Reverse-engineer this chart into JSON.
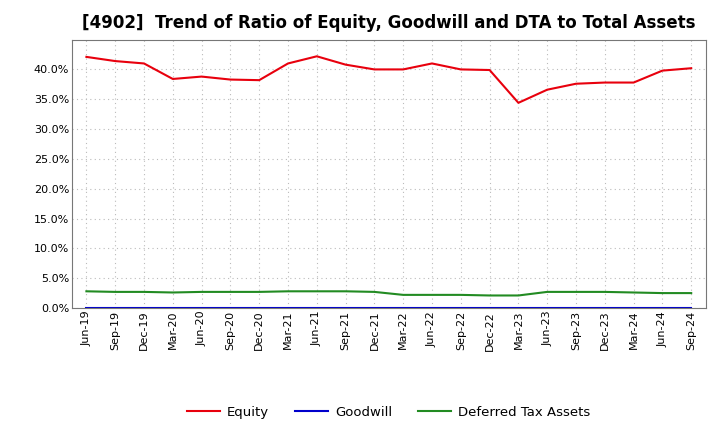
{
  "title": "[4902]  Trend of Ratio of Equity, Goodwill and DTA to Total Assets",
  "x_labels": [
    "Jun-19",
    "Sep-19",
    "Dec-19",
    "Mar-20",
    "Jun-20",
    "Sep-20",
    "Dec-20",
    "Mar-21",
    "Jun-21",
    "Sep-21",
    "Dec-21",
    "Mar-22",
    "Jun-22",
    "Sep-22",
    "Dec-22",
    "Mar-23",
    "Jun-23",
    "Sep-23",
    "Dec-23",
    "Mar-24",
    "Jun-24",
    "Sep-24"
  ],
  "equity": [
    0.421,
    0.414,
    0.41,
    0.384,
    0.388,
    0.383,
    0.382,
    0.41,
    0.422,
    0.408,
    0.4,
    0.4,
    0.41,
    0.4,
    0.399,
    0.344,
    0.366,
    0.376,
    0.378,
    0.378,
    0.398,
    0.402
  ],
  "goodwill": [
    0.0,
    0.0,
    0.0,
    0.0,
    0.0,
    0.0,
    0.0,
    0.0,
    0.0,
    0.0,
    0.0,
    0.0,
    0.0,
    0.0,
    0.0,
    0.0,
    0.0,
    0.0,
    0.0,
    0.0,
    0.0,
    0.0
  ],
  "dta": [
    0.028,
    0.027,
    0.027,
    0.026,
    0.027,
    0.027,
    0.027,
    0.028,
    0.028,
    0.028,
    0.027,
    0.022,
    0.022,
    0.022,
    0.021,
    0.021,
    0.027,
    0.027,
    0.027,
    0.026,
    0.025,
    0.025
  ],
  "equity_color": "#e8000d",
  "goodwill_color": "#0000cc",
  "dta_color": "#228B22",
  "background_color": "#ffffff",
  "plot_bg_color": "#ffffff",
  "grid_color": "#bbbbbb",
  "ylim": [
    0.0,
    0.45
  ],
  "yticks": [
    0.0,
    0.05,
    0.1,
    0.15,
    0.2,
    0.25,
    0.3,
    0.35,
    0.4
  ],
  "legend_labels": [
    "Equity",
    "Goodwill",
    "Deferred Tax Assets"
  ],
  "title_fontsize": 12,
  "tick_fontsize": 8,
  "legend_fontsize": 9.5
}
